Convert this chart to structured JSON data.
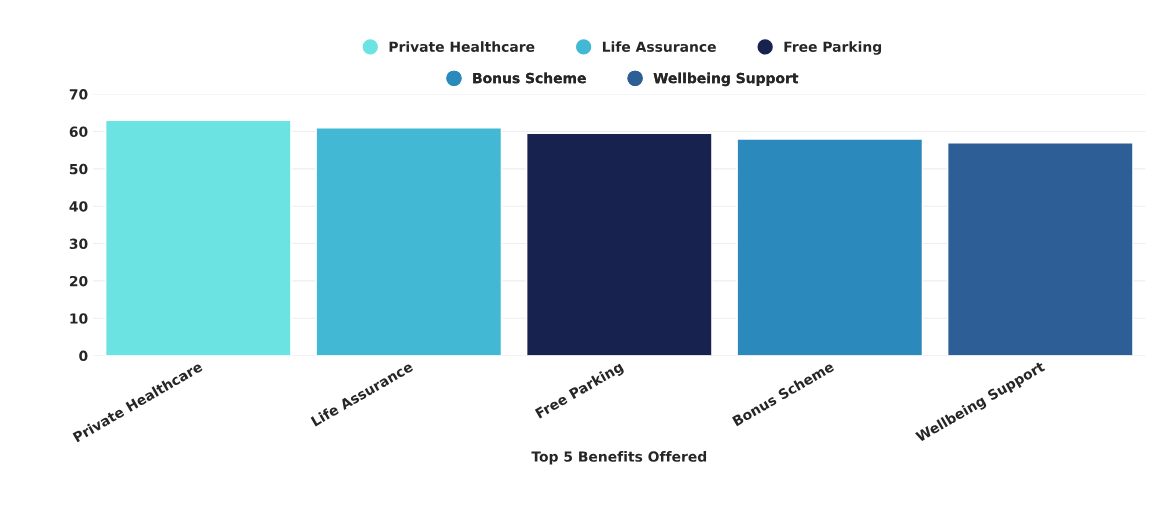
{
  "chart_data": {
    "type": "bar",
    "xlabel": "Top 5 Benefits Offered",
    "categories": [
      "Private Healthcare",
      "Life Assurance",
      "Free Parking",
      "Bonus Scheme",
      "Wellbeing Support"
    ],
    "series": [
      {
        "name": "Private Healthcare",
        "color": "#6ce3e3",
        "values": [
          63,
          null,
          null,
          null,
          null
        ]
      },
      {
        "name": "Life Assurance",
        "color": "#42b8d4",
        "values": [
          null,
          61,
          null,
          null,
          null
        ]
      },
      {
        "name": "Free Parking",
        "color": "#18224f",
        "values": [
          null,
          null,
          59.5,
          null,
          null
        ]
      },
      {
        "name": "Bonus Scheme",
        "color": "#2b8abb",
        "values": [
          null,
          null,
          null,
          58,
          null
        ]
      },
      {
        "name": "Wellbeing Support",
        "color": "#2e5e96",
        "values": [
          null,
          null,
          null,
          null,
          57
        ]
      }
    ],
    "ylim": [
      0,
      70
    ],
    "yticks": [
      0,
      10,
      20,
      30,
      40,
      50,
      60,
      70
    ],
    "grid": "y",
    "legend": "top"
  }
}
